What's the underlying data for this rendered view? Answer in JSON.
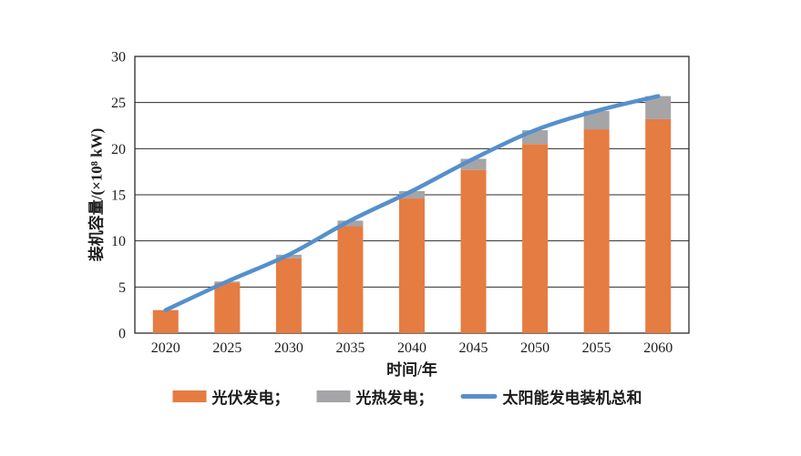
{
  "figure": {
    "y_axis_title": "装机容量/(×10⁸ kW)",
    "x_axis_title": "时间/年",
    "legend": [
      {
        "label": "光伏发电；",
        "swatch": "rect",
        "color": "#E57C42"
      },
      {
        "label": "光热发电；",
        "swatch": "rect",
        "color": "#A5A5A7"
      },
      {
        "label": "太阳能发电装机总和",
        "swatch": "line",
        "color": "#5590CB"
      }
    ]
  },
  "chart_data": {
    "type": "bar",
    "subtype": "stacked-bars-with-total-line",
    "title": "",
    "xlabel": "时间/年",
    "ylabel": "装机容量/(×10⁸ kW)",
    "categories": [
      "2020",
      "2025",
      "2030",
      "2035",
      "2040",
      "2045",
      "2050",
      "2055",
      "2060"
    ],
    "series": [
      {
        "name": "光伏发电",
        "type": "bar",
        "color": "#E57C42",
        "values": [
          2.5,
          5.5,
          8.1,
          11.6,
          14.6,
          17.7,
          20.5,
          22.1,
          23.2
        ]
      },
      {
        "name": "光热发电",
        "type": "bar",
        "color": "#A5A5A7",
        "values": [
          0.0,
          0.1,
          0.4,
          0.6,
          0.8,
          1.2,
          1.5,
          2.0,
          2.5
        ]
      },
      {
        "name": "太阳能发电装机总和",
        "type": "line",
        "color": "#5590CB",
        "values": [
          2.5,
          5.6,
          8.5,
          12.2,
          15.4,
          18.9,
          22.0,
          24.1,
          25.7
        ]
      }
    ],
    "ylim": [
      0,
      30
    ],
    "ytick_step": 5,
    "ytick_labels": [
      "0",
      "5",
      "10",
      "15",
      "20",
      "25",
      "30"
    ],
    "grid": true,
    "legend_position": "bottom"
  },
  "colors": {
    "grid": "#2b2b2b",
    "text": "#1c1c1c",
    "background": "#ffffff"
  }
}
